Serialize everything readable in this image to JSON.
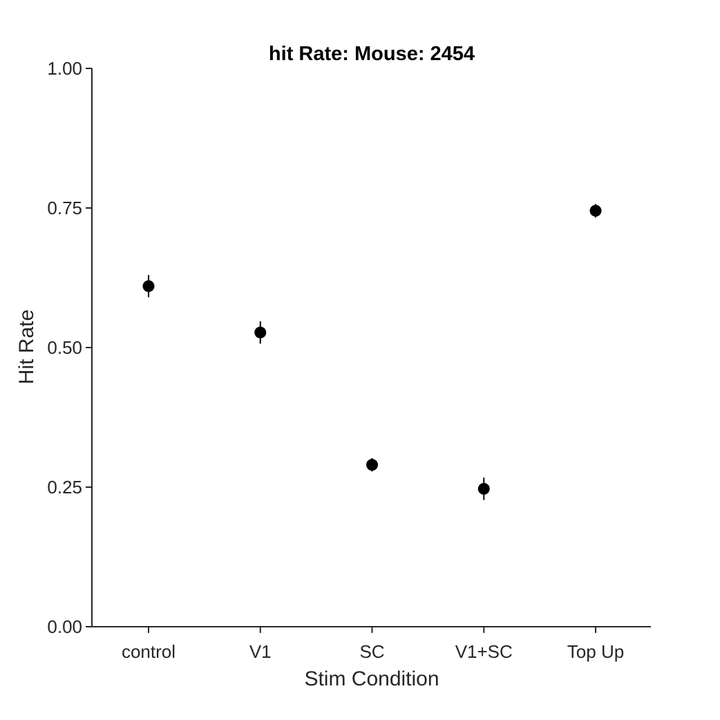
{
  "chart_data": {
    "type": "scatter",
    "title": "hit Rate: Mouse: 2454",
    "xlabel": "Stim Condition",
    "ylabel": "Hit Rate",
    "categories": [
      "control",
      "V1",
      "SC",
      "V1+SC",
      "Top Up"
    ],
    "series": [
      {
        "values": [
          0.61,
          0.527,
          0.29,
          0.247,
          0.745
        ],
        "error_low": [
          0.59,
          0.507,
          0.278,
          0.227,
          0.733
        ],
        "error_high": [
          0.63,
          0.547,
          0.302,
          0.267,
          0.757
        ],
        "color": "#000000",
        "marker": "circle"
      }
    ],
    "ylim": [
      0,
      1
    ],
    "yticks": [
      0,
      0.25,
      0.5,
      0.75,
      1.0
    ],
    "ytick_labels": [
      "0.00",
      "0.25",
      "0.50",
      "0.75",
      "1.00"
    ],
    "grid": false,
    "legend": "none",
    "axis_color": "#262626"
  }
}
